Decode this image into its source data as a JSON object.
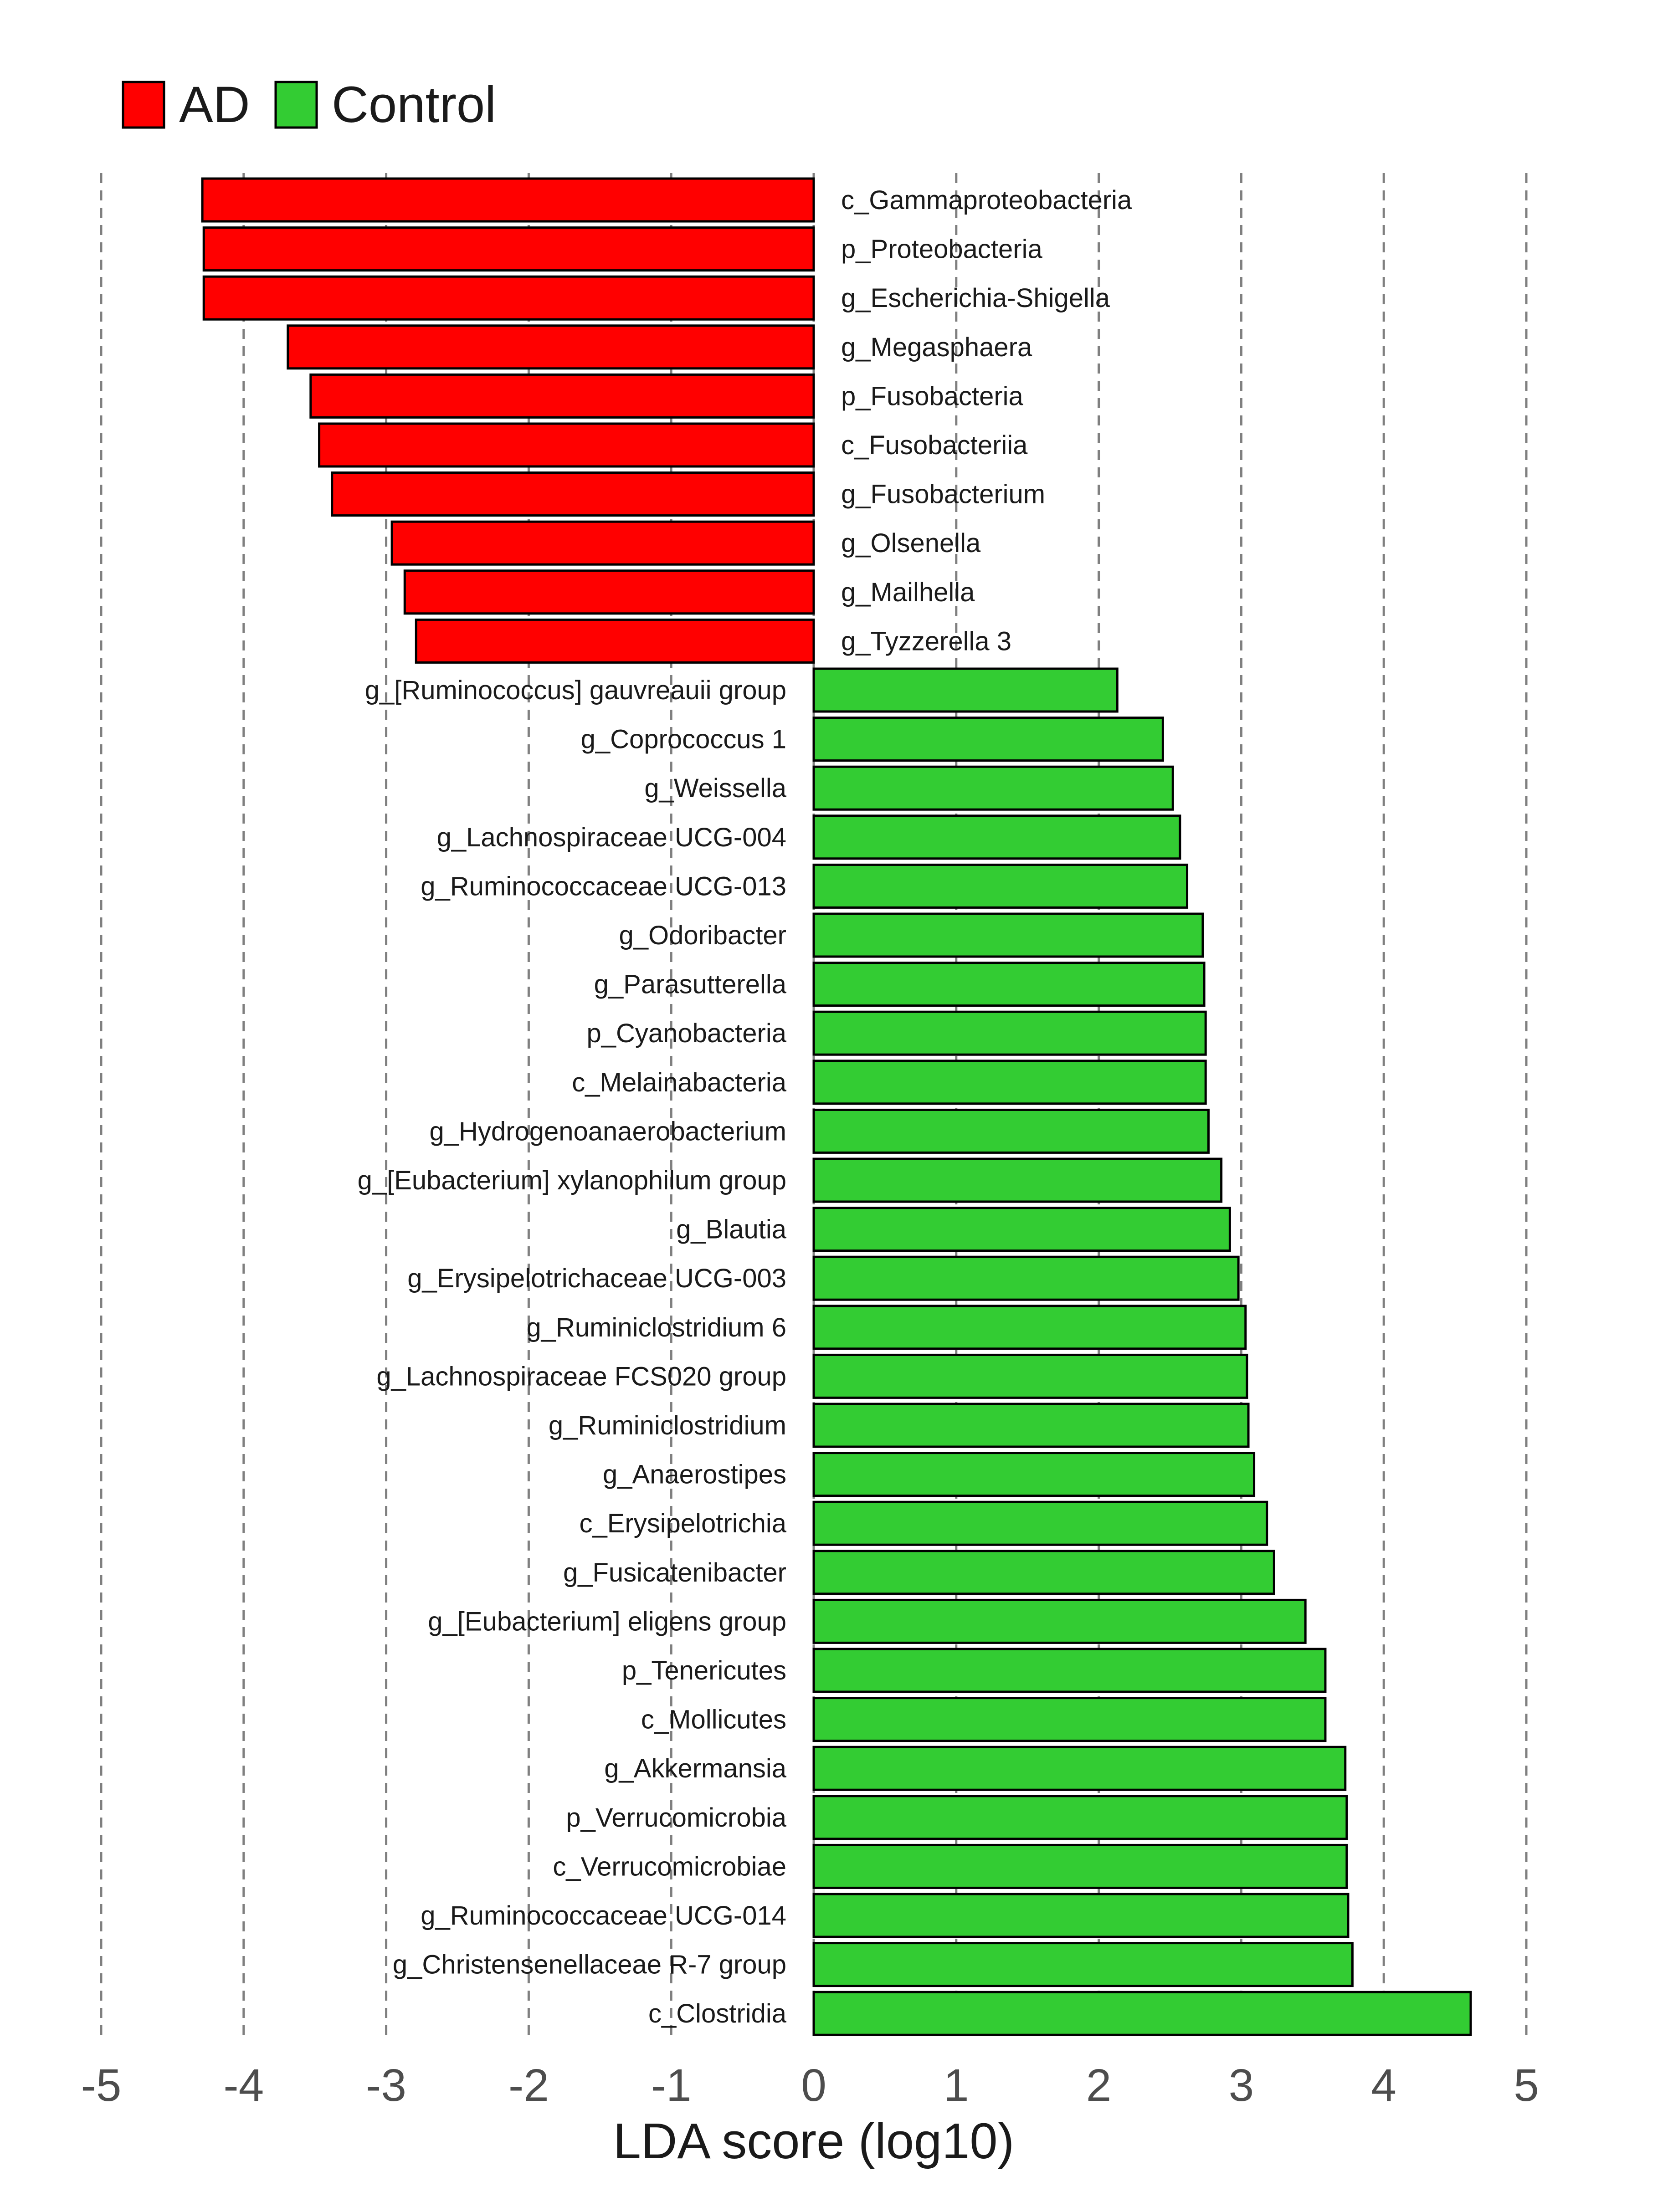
{
  "chart_data": {
    "type": "bar",
    "orientation": "horizontal",
    "xlabel": "LDA score (log10)",
    "xlim": [
      -5,
      5
    ],
    "x_ticks": [
      "-5",
      "-4",
      "-3",
      "-2",
      "-1",
      "0",
      "1",
      "2",
      "3",
      "4",
      "5"
    ],
    "grid": "vertical-dashed",
    "legend_position": "top-left",
    "legend": [
      {
        "name": "AD",
        "color": "#ff0000"
      },
      {
        "name": "Control",
        "color": "#33cc33"
      }
    ],
    "bars": [
      {
        "label": "c_Gammaproteobacteria",
        "value": -4.29,
        "group": "AD"
      },
      {
        "label": "p_Proteobacteria",
        "value": -4.28,
        "group": "AD"
      },
      {
        "label": "g_Escherichia-Shigella",
        "value": -4.28,
        "group": "AD"
      },
      {
        "label": "g_Megasphaera",
        "value": -3.69,
        "group": "AD"
      },
      {
        "label": "p_Fusobacteria",
        "value": -3.53,
        "group": "AD"
      },
      {
        "label": "c_Fusobacteriia",
        "value": -3.47,
        "group": "AD"
      },
      {
        "label": "g_Fusobacterium",
        "value": -3.38,
        "group": "AD"
      },
      {
        "label": "g_Olsenella",
        "value": -2.96,
        "group": "AD"
      },
      {
        "label": "g_Mailhella",
        "value": -2.87,
        "group": "AD"
      },
      {
        "label": "g_Tyzzerella 3",
        "value": -2.79,
        "group": "AD"
      },
      {
        "label": "g_[Ruminococcus] gauvreauii group",
        "value": 2.13,
        "group": "Control"
      },
      {
        "label": "g_Coprococcus 1",
        "value": 2.45,
        "group": "Control"
      },
      {
        "label": "g_Weissella",
        "value": 2.52,
        "group": "Control"
      },
      {
        "label": "g_Lachnospiraceae UCG-004",
        "value": 2.57,
        "group": "Control"
      },
      {
        "label": "g_Ruminococcaceae UCG-013",
        "value": 2.62,
        "group": "Control"
      },
      {
        "label": "g_Odoribacter",
        "value": 2.73,
        "group": "Control"
      },
      {
        "label": "g_Parasutterella",
        "value": 2.74,
        "group": "Control"
      },
      {
        "label": "p_Cyanobacteria",
        "value": 2.75,
        "group": "Control"
      },
      {
        "label": "c_Melainabacteria",
        "value": 2.75,
        "group": "Control"
      },
      {
        "label": "g_Hydrogenoanaerobacterium",
        "value": 2.77,
        "group": "Control"
      },
      {
        "label": "g_[Eubacterium] xylanophilum group",
        "value": 2.86,
        "group": "Control"
      },
      {
        "label": "g_Blautia",
        "value": 2.92,
        "group": "Control"
      },
      {
        "label": "g_Erysipelotrichaceae UCG-003",
        "value": 2.98,
        "group": "Control"
      },
      {
        "label": "g_Ruminiclostridium 6",
        "value": 3.03,
        "group": "Control"
      },
      {
        "label": "g_Lachnospiraceae FCS020 group",
        "value": 3.04,
        "group": "Control"
      },
      {
        "label": "g_Ruminiclostridium",
        "value": 3.05,
        "group": "Control"
      },
      {
        "label": "g_Anaerostipes",
        "value": 3.09,
        "group": "Control"
      },
      {
        "label": "c_Erysipelotrichia",
        "value": 3.18,
        "group": "Control"
      },
      {
        "label": "g_Fusicatenibacter",
        "value": 3.23,
        "group": "Control"
      },
      {
        "label": "g_[Eubacterium] eligens group",
        "value": 3.45,
        "group": "Control"
      },
      {
        "label": "p_Tenericutes",
        "value": 3.59,
        "group": "Control"
      },
      {
        "label": "c_Mollicutes",
        "value": 3.59,
        "group": "Control"
      },
      {
        "label": "g_Akkermansia",
        "value": 3.73,
        "group": "Control"
      },
      {
        "label": "p_Verrucomicrobia",
        "value": 3.74,
        "group": "Control"
      },
      {
        "label": "c_Verrucomicrobiae",
        "value": 3.74,
        "group": "Control"
      },
      {
        "label": "g_Ruminococcaceae UCG-014",
        "value": 3.75,
        "group": "Control"
      },
      {
        "label": "g_Christensenellaceae R-7 group",
        "value": 3.78,
        "group": "Control"
      },
      {
        "label": "c_Clostridia",
        "value": 4.61,
        "group": "Control"
      }
    ]
  }
}
